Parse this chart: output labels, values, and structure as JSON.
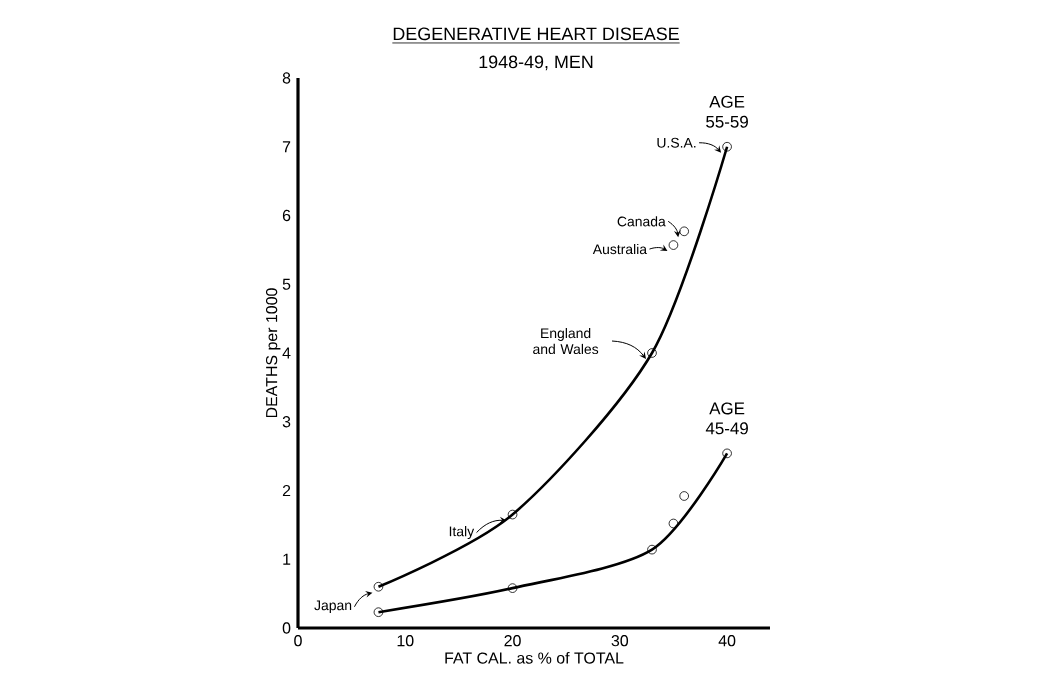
{
  "chart_data": {
    "type": "line",
    "title": "DEGENERATIVE HEART DISEASE",
    "subtitle": "1948-49, MEN",
    "xlabel": "FAT CAL. as % of TOTAL",
    "ylabel": "DEATHS per 1000",
    "xlim": [
      0,
      44
    ],
    "xticks": [
      0,
      10,
      20,
      30,
      40
    ],
    "ylim": [
      0,
      8
    ],
    "yticks": [
      0,
      1,
      2,
      3,
      4,
      5,
      6,
      7,
      8
    ],
    "grid": false,
    "series": [
      {
        "name": "AGE 55-59",
        "color": "#000000",
        "marker": "none",
        "x": [
          7.5,
          20,
          33,
          40
        ],
        "values": [
          0.6,
          1.65,
          4.0,
          7.0
        ]
      },
      {
        "name": "AGE 45-49",
        "color": "#000000",
        "marker": "none",
        "x": [
          7.5,
          20,
          33,
          40
        ],
        "values": [
          0.23,
          0.58,
          1.14,
          2.54
        ]
      },
      {
        "type": "scatter",
        "color": "#000000",
        "marker": "circle",
        "x": [
          7.5,
          20,
          33,
          35,
          36,
          40
        ],
        "values": [
          0.6,
          1.65,
          4.0,
          5.57,
          5.77,
          7.0
        ]
      },
      {
        "type": "scatter",
        "color": "#000000",
        "marker": "circle",
        "x": [
          7.5,
          20,
          33,
          35,
          36,
          40
        ],
        "values": [
          0.23,
          0.58,
          1.14,
          1.52,
          1.92,
          2.54
        ]
      }
    ],
    "annotations": [
      {
        "text": "U.S.A.",
        "x": 40,
        "y": 7.0
      },
      {
        "text": "Canada",
        "x": 36,
        "y": 5.77
      },
      {
        "text": "Australia",
        "x": 35,
        "y": 5.57
      },
      {
        "text": "England and Wales",
        "x": 33,
        "y": 4.0
      },
      {
        "text": "Italy",
        "x": 20,
        "y": 1.65
      },
      {
        "text": "Japan",
        "x": 7.5,
        "y": 0.6
      }
    ]
  }
}
